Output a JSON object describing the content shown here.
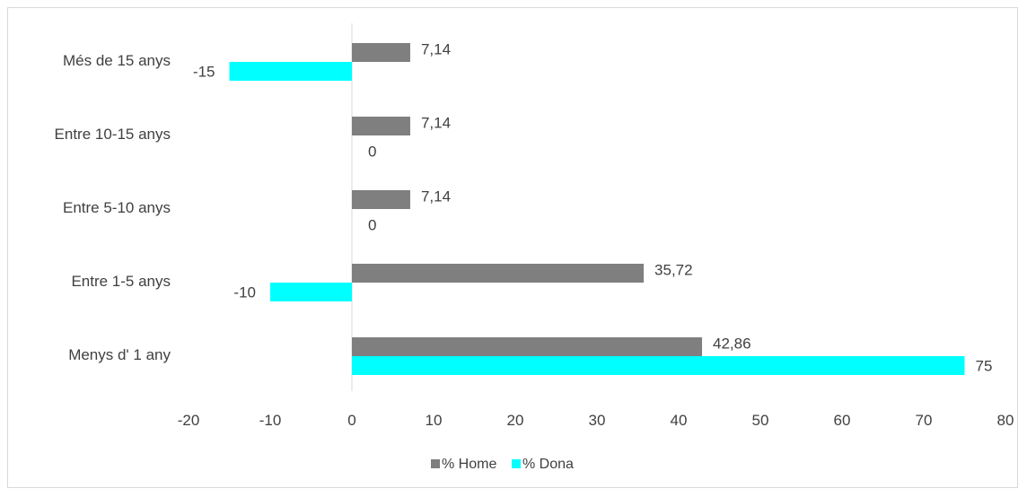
{
  "chart_data": {
    "type": "bar",
    "orientation": "horizontal",
    "categories": [
      "Menys d' 1 any",
      "Entre 1-5 anys",
      "Entre 5-10 anys",
      "Entre 10-15 anys",
      "Més de 15 anys"
    ],
    "series": [
      {
        "name": "% Home",
        "color": "#7f7f7f",
        "values": [
          42.86,
          35.72,
          7.14,
          7.14,
          7.14
        ],
        "labels": [
          "42,86",
          "35,72",
          "7,14",
          "7,14",
          "7,14"
        ]
      },
      {
        "name": "% Dona",
        "color": "#00ffff",
        "values": [
          75,
          -10,
          0,
          0,
          -15
        ],
        "labels": [
          "75",
          "-10",
          "0",
          "0",
          "-15"
        ]
      }
    ],
    "xlim": [
      -20,
      80
    ],
    "xticks": [
      "-20",
      "-10",
      "0",
      "10",
      "20",
      "30",
      "40",
      "50",
      "60",
      "70",
      "80"
    ],
    "grid": false,
    "legend_position": "bottom",
    "title": "",
    "xlabel": "",
    "ylabel": ""
  }
}
